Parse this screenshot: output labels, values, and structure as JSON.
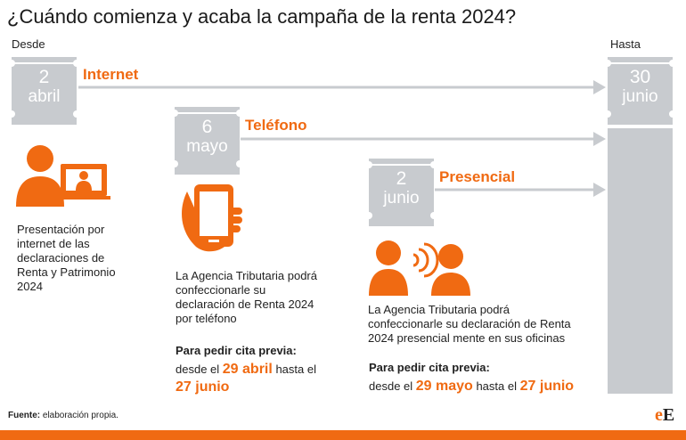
{
  "title": "¿Cuándo comienza y acaba la campaña de la renta 2024?",
  "labels": {
    "desde": "Desde",
    "hasta": "Hasta"
  },
  "start_internet": {
    "day": "2",
    "month": "abril"
  },
  "start_telefono": {
    "day": "6",
    "month": "mayo"
  },
  "start_presencial": {
    "day": "2",
    "month": "junio"
  },
  "end_date": {
    "day": "30",
    "month": "junio"
  },
  "channels": {
    "internet": "Internet",
    "telefono": "Teléfono",
    "presencial": "Presencial"
  },
  "desc": {
    "internet": [
      "Presentación por",
      "internet de las",
      "declaraciones de",
      "Renta y Patrimonio",
      "2024"
    ],
    "telefono": [
      "La Agencia Tributaria podrá",
      "confeccionarle su",
      "declaración de Renta 2024",
      "por teléfono"
    ],
    "presencial": [
      "La Agencia Tributaria podrá",
      "confeccionarle su declaración de Renta",
      "2024 presencial mente en sus oficinas"
    ]
  },
  "cita": {
    "label": "Para pedir cita previa:",
    "telefono": {
      "desde": "desde el",
      "start": "29 abril",
      "hasta": "hasta el",
      "end": "27 junio"
    },
    "presencial": {
      "desde": "desde el",
      "start": "29 mayo",
      "hasta": "hasta el",
      "end": "27 junio"
    }
  },
  "footer": {
    "label": "Fuente:",
    "text": " elaboración propia."
  },
  "logo": {
    "e": "e",
    "E": "E"
  },
  "colors": {
    "accent": "#f06a12",
    "calendar": "#c8cbcf",
    "arrow": "#c8cbcf"
  },
  "icons": [
    "computer-user-icon",
    "smartphone-hand-icon",
    "people-talking-icon"
  ]
}
